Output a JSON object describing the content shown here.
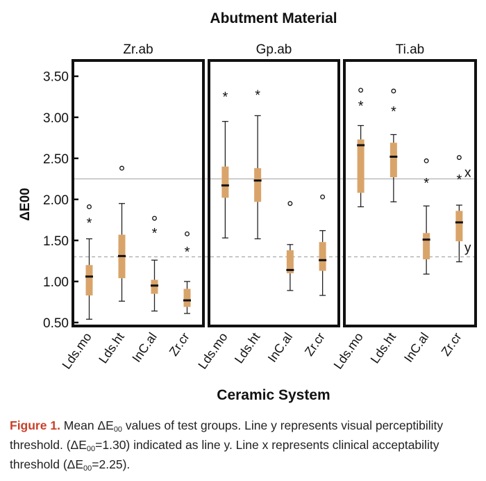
{
  "chart_data": {
    "type": "boxplot",
    "title": "Abutment Material",
    "xlabel": "Ceramic System",
    "ylabel": "ΔE00",
    "ylim": [
      0.5,
      3.65
    ],
    "yticks": [
      0.5,
      1.0,
      1.5,
      2.0,
      2.5,
      3.0,
      3.5
    ],
    "ytick_labels": [
      "0.50",
      "1.00",
      "1.50",
      "2.00",
      "2.50",
      "3.00",
      "3.50"
    ],
    "categories": [
      "Lds.mo",
      "Lds.ht",
      "InC.al",
      "Zr.cr"
    ],
    "reference_lines": [
      {
        "name": "x",
        "label": "x",
        "value": 2.25,
        "style": "solid"
      },
      {
        "name": "y",
        "label": "y",
        "value": 1.3,
        "style": "dashed"
      }
    ],
    "box_color": "#d9a46a",
    "panels": [
      {
        "name": "Zr.ab",
        "groups": [
          {
            "category": "Lds.mo",
            "min": 0.54,
            "q1": 0.83,
            "median": 1.06,
            "q3": 1.2,
            "max": 1.52,
            "outliers": [
              {
                "value": 1.91,
                "symbol": "o"
              },
              {
                "value": 1.73,
                "symbol": "*"
              }
            ]
          },
          {
            "category": "Lds.ht",
            "min": 0.76,
            "q1": 1.04,
            "median": 1.31,
            "q3": 1.57,
            "max": 1.95,
            "outliers": [
              {
                "value": 2.38,
                "symbol": "o"
              }
            ]
          },
          {
            "category": "InC.al",
            "min": 0.64,
            "q1": 0.85,
            "median": 0.95,
            "q3": 1.02,
            "max": 1.26,
            "outliers": [
              {
                "value": 1.77,
                "symbol": "o"
              },
              {
                "value": 1.61,
                "symbol": "*"
              }
            ]
          },
          {
            "category": "Zr.cr",
            "min": 0.61,
            "q1": 0.69,
            "median": 0.77,
            "q3": 0.91,
            "max": 1.0,
            "outliers": [
              {
                "value": 1.58,
                "symbol": "o"
              },
              {
                "value": 1.38,
                "symbol": "*"
              }
            ]
          }
        ]
      },
      {
        "name": "Gp.ab",
        "groups": [
          {
            "category": "Lds.mo",
            "min": 1.53,
            "q1": 2.02,
            "median": 2.17,
            "q3": 2.4,
            "max": 2.95,
            "outliers": [
              {
                "value": 3.27,
                "symbol": "*"
              }
            ]
          },
          {
            "category": "Lds.ht",
            "min": 1.52,
            "q1": 1.97,
            "median": 2.23,
            "q3": 2.38,
            "max": 3.02,
            "outliers": [
              {
                "value": 3.29,
                "symbol": "*"
              }
            ]
          },
          {
            "category": "InC.al",
            "min": 0.89,
            "q1": 1.1,
            "median": 1.14,
            "q3": 1.38,
            "max": 1.45,
            "outliers": [
              {
                "value": 1.95,
                "symbol": "o"
              }
            ]
          },
          {
            "category": "Zr.cr",
            "min": 0.83,
            "q1": 1.13,
            "median": 1.26,
            "q3": 1.48,
            "max": 1.62,
            "outliers": [
              {
                "value": 2.03,
                "symbol": "o"
              }
            ]
          }
        ]
      },
      {
        "name": "Ti.ab",
        "groups": [
          {
            "category": "Lds.mo",
            "min": 1.91,
            "q1": 2.08,
            "median": 2.66,
            "q3": 2.73,
            "max": 2.9,
            "outliers": [
              {
                "value": 3.33,
                "symbol": "o"
              },
              {
                "value": 3.16,
                "symbol": "*"
              }
            ]
          },
          {
            "category": "Lds.ht",
            "min": 1.97,
            "q1": 2.27,
            "median": 2.52,
            "q3": 2.69,
            "max": 2.79,
            "outliers": [
              {
                "value": 3.32,
                "symbol": "o"
              },
              {
                "value": 3.09,
                "symbol": "*"
              }
            ]
          },
          {
            "category": "InC.al",
            "min": 1.09,
            "q1": 1.27,
            "median": 1.51,
            "q3": 1.59,
            "max": 1.92,
            "outliers": [
              {
                "value": 2.47,
                "symbol": "o"
              },
              {
                "value": 2.22,
                "symbol": "*"
              }
            ]
          },
          {
            "category": "Zr.cr",
            "min": 1.24,
            "q1": 1.49,
            "median": 1.72,
            "q3": 1.86,
            "max": 1.93,
            "outliers": [
              {
                "value": 2.51,
                "symbol": "o"
              },
              {
                "value": 2.26,
                "symbol": "*"
              }
            ]
          }
        ]
      }
    ]
  },
  "caption": {
    "label": "Figure 1.",
    "part1": " Mean ΔE",
    "sub1": "00",
    "part2": " values of test groups. Line y represents visual perceptibility threshold. (ΔE",
    "sub2": "00",
    "part3": "=1.30) indicated as line y. Line x represents clinical acceptability threshold (ΔE",
    "sub3": "00",
    "part4": "=2.25)."
  }
}
